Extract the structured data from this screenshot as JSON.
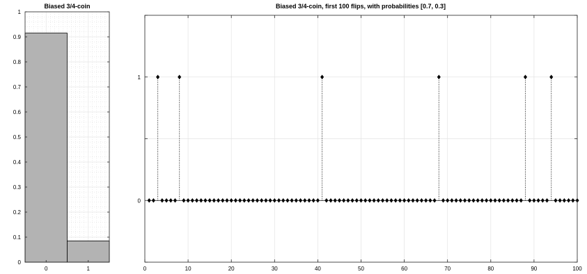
{
  "chart_data": [
    {
      "type": "bar",
      "title": "Biased 3/4-coin",
      "categories": [
        "0",
        "1"
      ],
      "values": [
        0.915,
        0.085
      ],
      "ylim": [
        0,
        1
      ],
      "yticks": [
        "0",
        "0.1",
        "0.2",
        "0.3",
        "0.4",
        "0.5",
        "0.6",
        "0.7",
        "0.8",
        "0.9",
        "1"
      ],
      "grid": true,
      "minor_grid": true,
      "bar_color": "#b3b3b3",
      "edge_color": "#000000"
    },
    {
      "type": "scatter",
      "title": "Biased 3/4-coin,  first 100 flips,  with probabilities [0.7, 0.3]",
      "x": [
        1,
        2,
        3,
        4,
        5,
        6,
        7,
        8,
        9,
        10,
        11,
        12,
        13,
        14,
        15,
        16,
        17,
        18,
        19,
        20,
        21,
        22,
        23,
        24,
        25,
        26,
        27,
        28,
        29,
        30,
        31,
        32,
        33,
        34,
        35,
        36,
        37,
        38,
        39,
        40,
        41,
        42,
        43,
        44,
        45,
        46,
        47,
        48,
        49,
        50,
        51,
        52,
        53,
        54,
        55,
        56,
        57,
        58,
        59,
        60,
        61,
        62,
        63,
        64,
        65,
        66,
        67,
        68,
        69,
        70,
        71,
        72,
        73,
        74,
        75,
        76,
        77,
        78,
        79,
        80,
        81,
        82,
        83,
        84,
        85,
        86,
        87,
        88,
        89,
        90,
        91,
        92,
        93,
        94,
        95,
        96,
        97,
        98,
        99,
        100
      ],
      "y": [
        0,
        0,
        1,
        0,
        0,
        0,
        0,
        1,
        0,
        0,
        0,
        0,
        0,
        0,
        0,
        0,
        0,
        0,
        0,
        0,
        0,
        0,
        0,
        0,
        0,
        0,
        0,
        0,
        0,
        0,
        0,
        0,
        0,
        0,
        0,
        0,
        0,
        0,
        0,
        0,
        1,
        0,
        0,
        0,
        0,
        0,
        0,
        0,
        0,
        0,
        0,
        0,
        0,
        0,
        0,
        0,
        0,
        0,
        0,
        0,
        0,
        0,
        0,
        0,
        0,
        0,
        0,
        1,
        0,
        0,
        0,
        0,
        0,
        0,
        0,
        0,
        0,
        0,
        0,
        0,
        0,
        0,
        0,
        0,
        0,
        0,
        0,
        1,
        0,
        0,
        0,
        0,
        0,
        1,
        0,
        0,
        0,
        0,
        0,
        0
      ],
      "xlim": [
        0,
        100
      ],
      "ylim": [
        -0.5,
        1.5
      ],
      "xticks": [
        "0",
        "10",
        "20",
        "30",
        "40",
        "50",
        "60",
        "70",
        "80",
        "90",
        "100"
      ],
      "yticks": [
        "0",
        "1"
      ],
      "grid": true,
      "marker": "diamond",
      "marker_color": "#000000",
      "stem_style": "dotted"
    }
  ]
}
